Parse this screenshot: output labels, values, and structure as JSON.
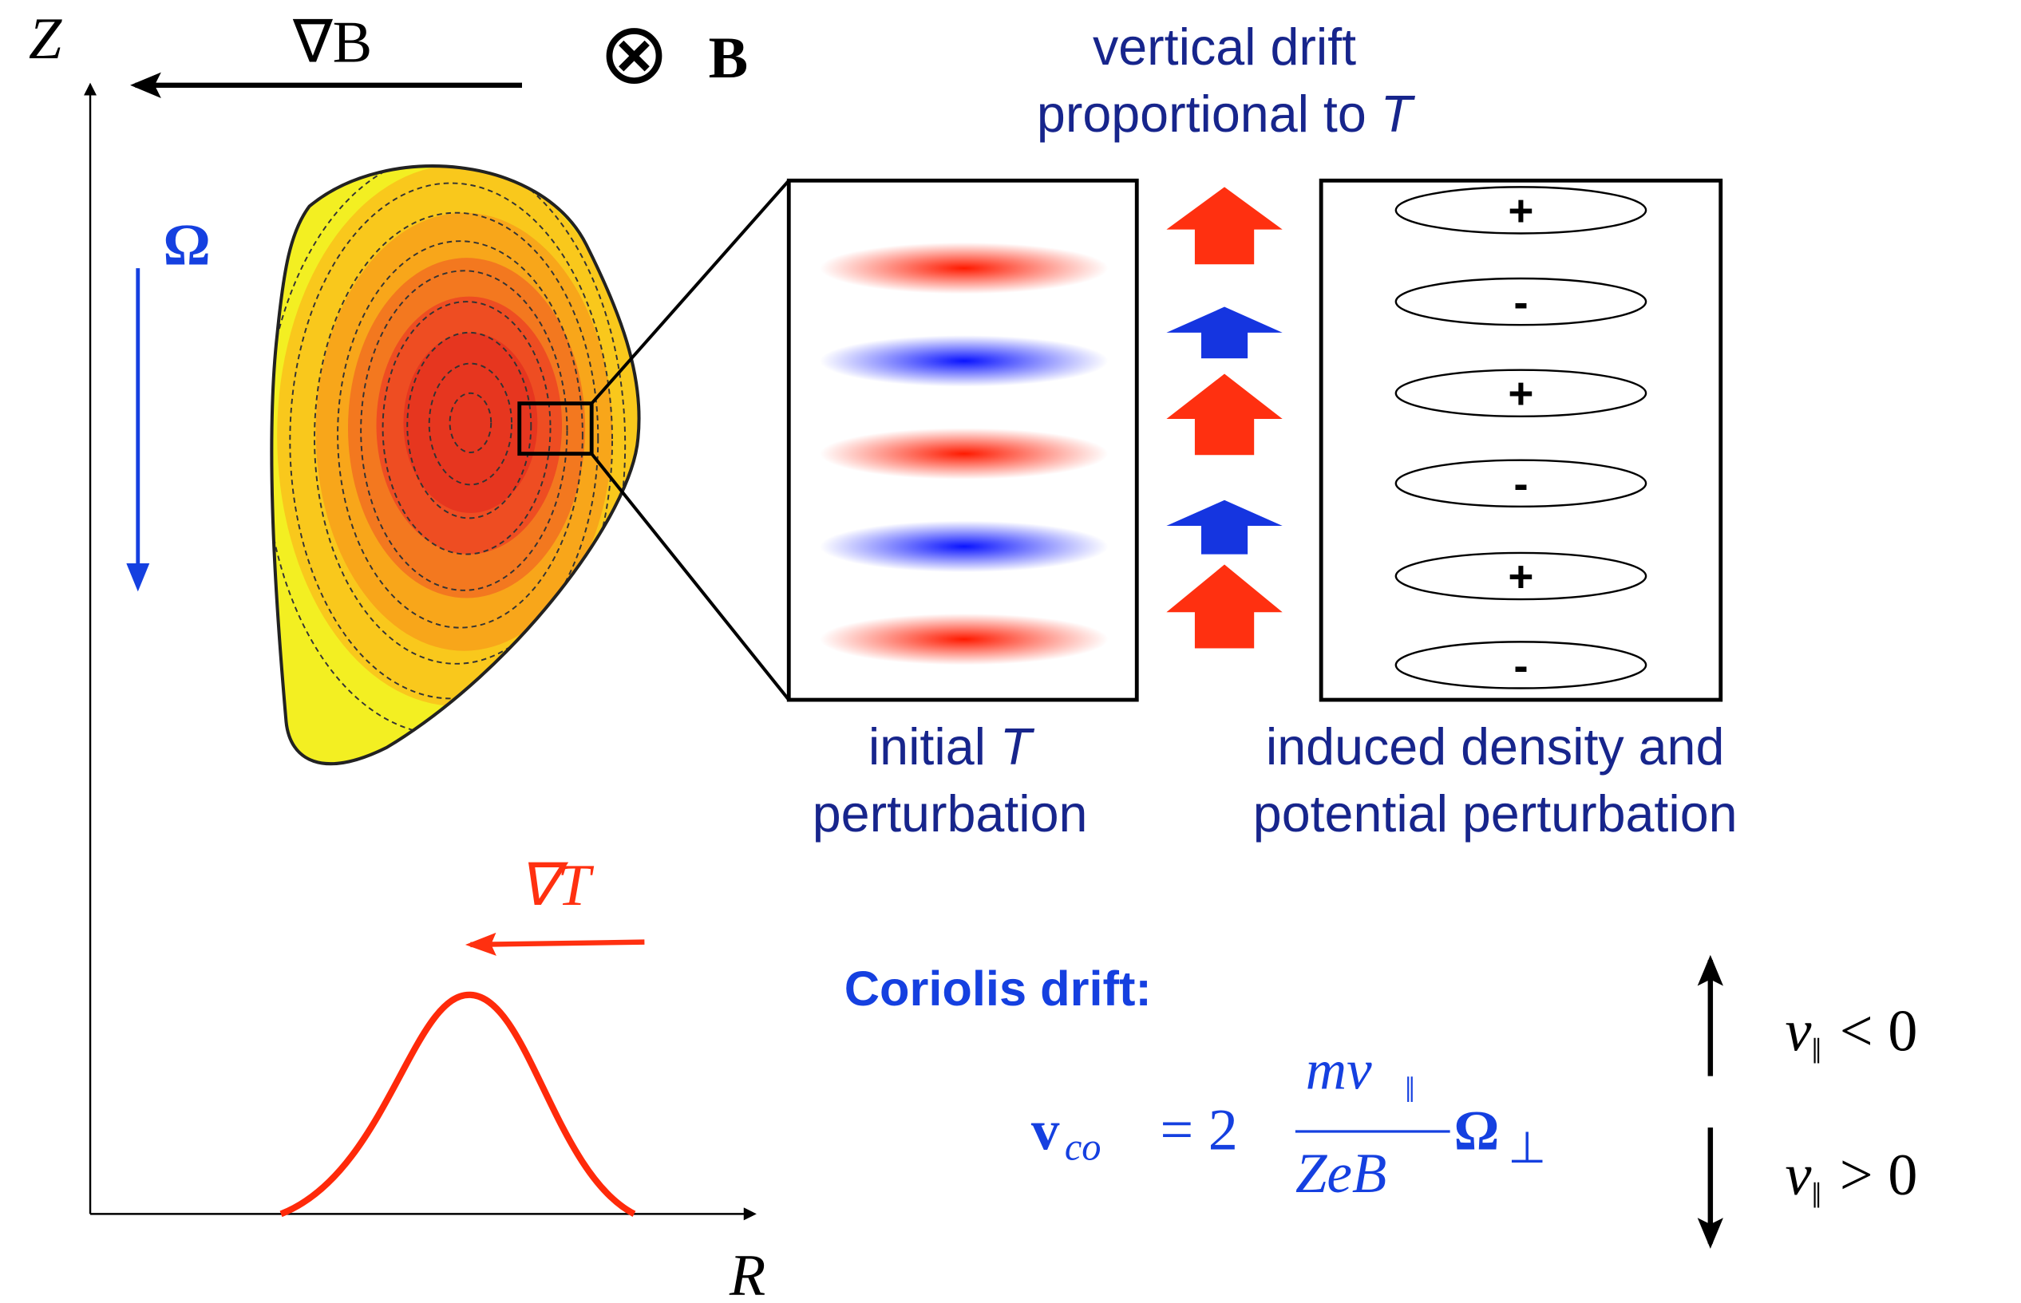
{
  "axes": {
    "z": "Z",
    "r": "R"
  },
  "field": {
    "grad_b": "∇B",
    "b_symbol": "⊗",
    "b": "B",
    "omega": "Ω",
    "grad_t": "∇T"
  },
  "drift_caption": {
    "line1": "vertical drift",
    "line2_text": "proportional to ",
    "line2_var": "T"
  },
  "left_box_caption": {
    "line1_text": "initial ",
    "line1_var": "T",
    "line2": "perturbation"
  },
  "right_box_caption": {
    "line1": "induced density and",
    "line2": "potential perturbation"
  },
  "signs": [
    "+",
    "-",
    "+",
    "-",
    "+",
    "-"
  ],
  "coriolis": {
    "title": "Coriolis drift:",
    "lhs": "v",
    "lhs_sub": "co",
    "equals": "= 2",
    "numerator": "mv",
    "numerator_sub": "‖",
    "denominator": "ZeB",
    "rhs": "Ω",
    "rhs_sub": "⊥"
  },
  "direction": {
    "up_var": "v",
    "up_sub": "‖",
    "up_rel": "< 0",
    "down_var": "v",
    "down_sub": "‖",
    "down_rel": "> 0"
  }
}
